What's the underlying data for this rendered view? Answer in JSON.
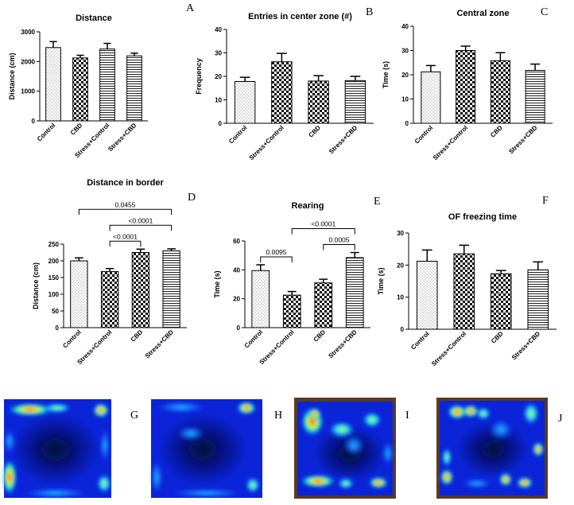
{
  "figure": {
    "heatmap_letters": [
      "G",
      "H",
      "I",
      "J"
    ]
  },
  "chart_data": [
    {
      "id": "A",
      "type": "bar",
      "title": "Distance",
      "xlabel": "",
      "ylabel": "Distance (cm)",
      "ylim": [
        0,
        3000
      ],
      "yticks": [
        0,
        1000,
        2000,
        3000
      ],
      "categories": [
        "Control",
        "CBD",
        "Stress+Control",
        "Stress+CBD"
      ],
      "values": [
        2470,
        2120,
        2420,
        2190
      ],
      "errors": [
        200,
        90,
        190,
        90
      ],
      "patterns": [
        "dots",
        "checker",
        "hlines",
        "hlines"
      ],
      "annotations": []
    },
    {
      "id": "B",
      "type": "bar",
      "title": "Entries in center zone (#)",
      "xlabel": "",
      "ylabel": "Frequency",
      "ylim": [
        0,
        40
      ],
      "yticks": [
        0,
        10,
        20,
        30,
        40
      ],
      "categories": [
        "Control",
        "Stress+Control",
        "CBD",
        "Stress+CBD"
      ],
      "values": [
        17.8,
        26.2,
        18.0,
        18.2
      ],
      "errors": [
        1.8,
        3.6,
        2.3,
        1.8
      ],
      "patterns": [
        "dots",
        "checker",
        "checker",
        "hlines"
      ],
      "annotations": []
    },
    {
      "id": "C",
      "type": "bar",
      "title": "Central zone",
      "xlabel": "",
      "ylabel": "Time (s)",
      "ylim": [
        0,
        40
      ],
      "yticks": [
        0,
        10,
        20,
        30,
        40
      ],
      "categories": [
        "Control",
        "Stress+Control",
        "CBD",
        "Stress+CBD"
      ],
      "values": [
        21.2,
        30.0,
        25.8,
        21.8
      ],
      "errors": [
        2.6,
        1.8,
        3.3,
        2.6
      ],
      "patterns": [
        "dots",
        "checker",
        "checker",
        "hlines"
      ],
      "annotations": []
    },
    {
      "id": "D",
      "type": "bar",
      "title": "Distance in border",
      "xlabel": "",
      "ylabel": "Distance (cm)",
      "ylim": [
        0,
        250
      ],
      "yticks": [
        0,
        50,
        100,
        150,
        200,
        250
      ],
      "categories": [
        "Control",
        "Stress+Control",
        "CBD",
        "Stress+CBD"
      ],
      "values": [
        200,
        168,
        225,
        230
      ],
      "errors": [
        9,
        9,
        10,
        6
      ],
      "patterns": [
        "dots",
        "checker",
        "checker",
        "hlines"
      ],
      "annotations": [
        {
          "from": 0,
          "to": 3,
          "label": "0.0455"
        },
        {
          "from": 1,
          "to": 3,
          "label": "<0.0001"
        },
        {
          "from": 1,
          "to": 2,
          "label": "<0.0001"
        }
      ]
    },
    {
      "id": "E",
      "type": "bar",
      "title": "Rearing",
      "xlabel": "",
      "ylabel": "Time (s)",
      "ylim": [
        0,
        60
      ],
      "yticks": [
        0,
        20,
        40,
        60
      ],
      "categories": [
        "Control",
        "Stress+Control",
        "CBD",
        "Stress+CBD"
      ],
      "values": [
        39.5,
        22.5,
        31.0,
        48.5
      ],
      "errors": [
        4.0,
        2.5,
        2.5,
        3.5
      ],
      "patterns": [
        "dots",
        "checker",
        "checker",
        "hlines"
      ],
      "annotations": [
        {
          "from": 0,
          "to": 1,
          "label": "0.0095"
        },
        {
          "from": 1,
          "to": 3,
          "label": "<0.0001"
        },
        {
          "from": 2,
          "to": 3,
          "label": "0.0005"
        }
      ]
    },
    {
      "id": "F",
      "type": "bar",
      "title": "OF freezing time",
      "xlabel": "",
      "ylabel": "Time (s)",
      "ylim": [
        0,
        30
      ],
      "yticks": [
        0,
        10,
        20,
        30
      ],
      "categories": [
        "Control",
        "Stress+Control",
        "CBD",
        "Stress+CBD"
      ],
      "values": [
        21.2,
        23.5,
        17.3,
        18.5
      ],
      "errors": [
        3.5,
        2.7,
        1.0,
        2.5
      ],
      "patterns": [
        "dots",
        "checker",
        "checker",
        "hlines"
      ],
      "annotations": []
    }
  ]
}
